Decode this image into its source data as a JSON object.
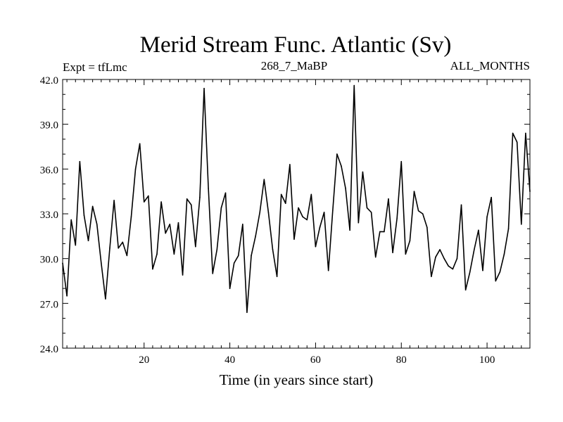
{
  "chart_data": {
    "type": "line",
    "title": "Merid Stream Func. Atlantic (Sv)",
    "subtitle_left": "Expt = tfLmc",
    "subtitle_center": "268_7_MaBP",
    "subtitle_right": "ALL_MONTHS",
    "xlabel": "Time (in years since start)",
    "ylabel": "",
    "xlim": [
      1,
      110
    ],
    "ylim": [
      24.0,
      42.0
    ],
    "x_ticks": [
      20,
      40,
      60,
      80,
      100
    ],
    "x_tick_labels": [
      "20",
      "40",
      "60",
      "80",
      "100"
    ],
    "y_ticks": [
      24,
      27,
      30,
      33,
      36,
      39,
      42
    ],
    "y_tick_labels": [
      "24.0",
      "27.0",
      "30.0",
      "33.0",
      "36.0",
      "39.0",
      "42.0"
    ],
    "grid": false,
    "series": [
      {
        "name": "Merid Stream Func. Atlantic",
        "color": "#000000",
        "x": [
          1,
          2,
          3,
          4,
          5,
          6,
          7,
          8,
          9,
          10,
          11,
          12,
          13,
          14,
          15,
          16,
          17,
          18,
          19,
          20,
          21,
          22,
          23,
          24,
          25,
          26,
          27,
          28,
          29,
          30,
          31,
          32,
          33,
          34,
          35,
          36,
          37,
          38,
          39,
          40,
          41,
          42,
          43,
          44,
          45,
          46,
          47,
          48,
          49,
          50,
          51,
          52,
          53,
          54,
          55,
          56,
          57,
          58,
          59,
          60,
          61,
          62,
          63,
          64,
          65,
          66,
          67,
          68,
          69,
          70,
          71,
          72,
          73,
          74,
          75,
          76,
          77,
          78,
          79,
          80,
          81,
          82,
          83,
          84,
          85,
          86,
          87,
          88,
          89,
          90,
          91,
          92,
          93,
          94,
          95,
          96,
          97,
          98,
          99,
          100,
          101,
          102,
          103,
          104,
          105,
          106,
          107,
          108,
          109,
          110
        ],
        "values": [
          29.7,
          27.5,
          32.6,
          30.9,
          36.5,
          32.9,
          31.2,
          33.5,
          32.3,
          29.7,
          27.3,
          30.7,
          33.9,
          30.7,
          31.1,
          30.2,
          32.8,
          36.0,
          37.7,
          33.8,
          34.2,
          29.3,
          30.3,
          33.8,
          31.7,
          32.3,
          30.3,
          32.4,
          28.9,
          34.0,
          33.6,
          30.8,
          34.1,
          41.4,
          34.7,
          29.0,
          30.6,
          33.4,
          34.4,
          28.0,
          29.7,
          30.2,
          32.3,
          26.4,
          30.2,
          31.5,
          33.1,
          35.3,
          33.1,
          30.6,
          28.8,
          34.3,
          33.7,
          36.3,
          31.3,
          33.4,
          32.8,
          32.6,
          34.3,
          30.8,
          32.1,
          33.1,
          29.2,
          33.2,
          37.0,
          36.2,
          34.7,
          31.9,
          41.6,
          32.4,
          35.8,
          33.4,
          33.1,
          30.1,
          31.8,
          31.8,
          34.0,
          30.4,
          32.7,
          36.5,
          30.3,
          31.2,
          34.5,
          33.2,
          33.0,
          32.1,
          28.8,
          30.1,
          30.6,
          30.0,
          29.5,
          29.3,
          30.0,
          33.6,
          27.9,
          29.1,
          30.6,
          31.9,
          29.2,
          32.8,
          34.1,
          28.5,
          29.1,
          30.3,
          32.0,
          38.4,
          37.8,
          32.3,
          38.4,
          34.5
        ]
      }
    ]
  }
}
